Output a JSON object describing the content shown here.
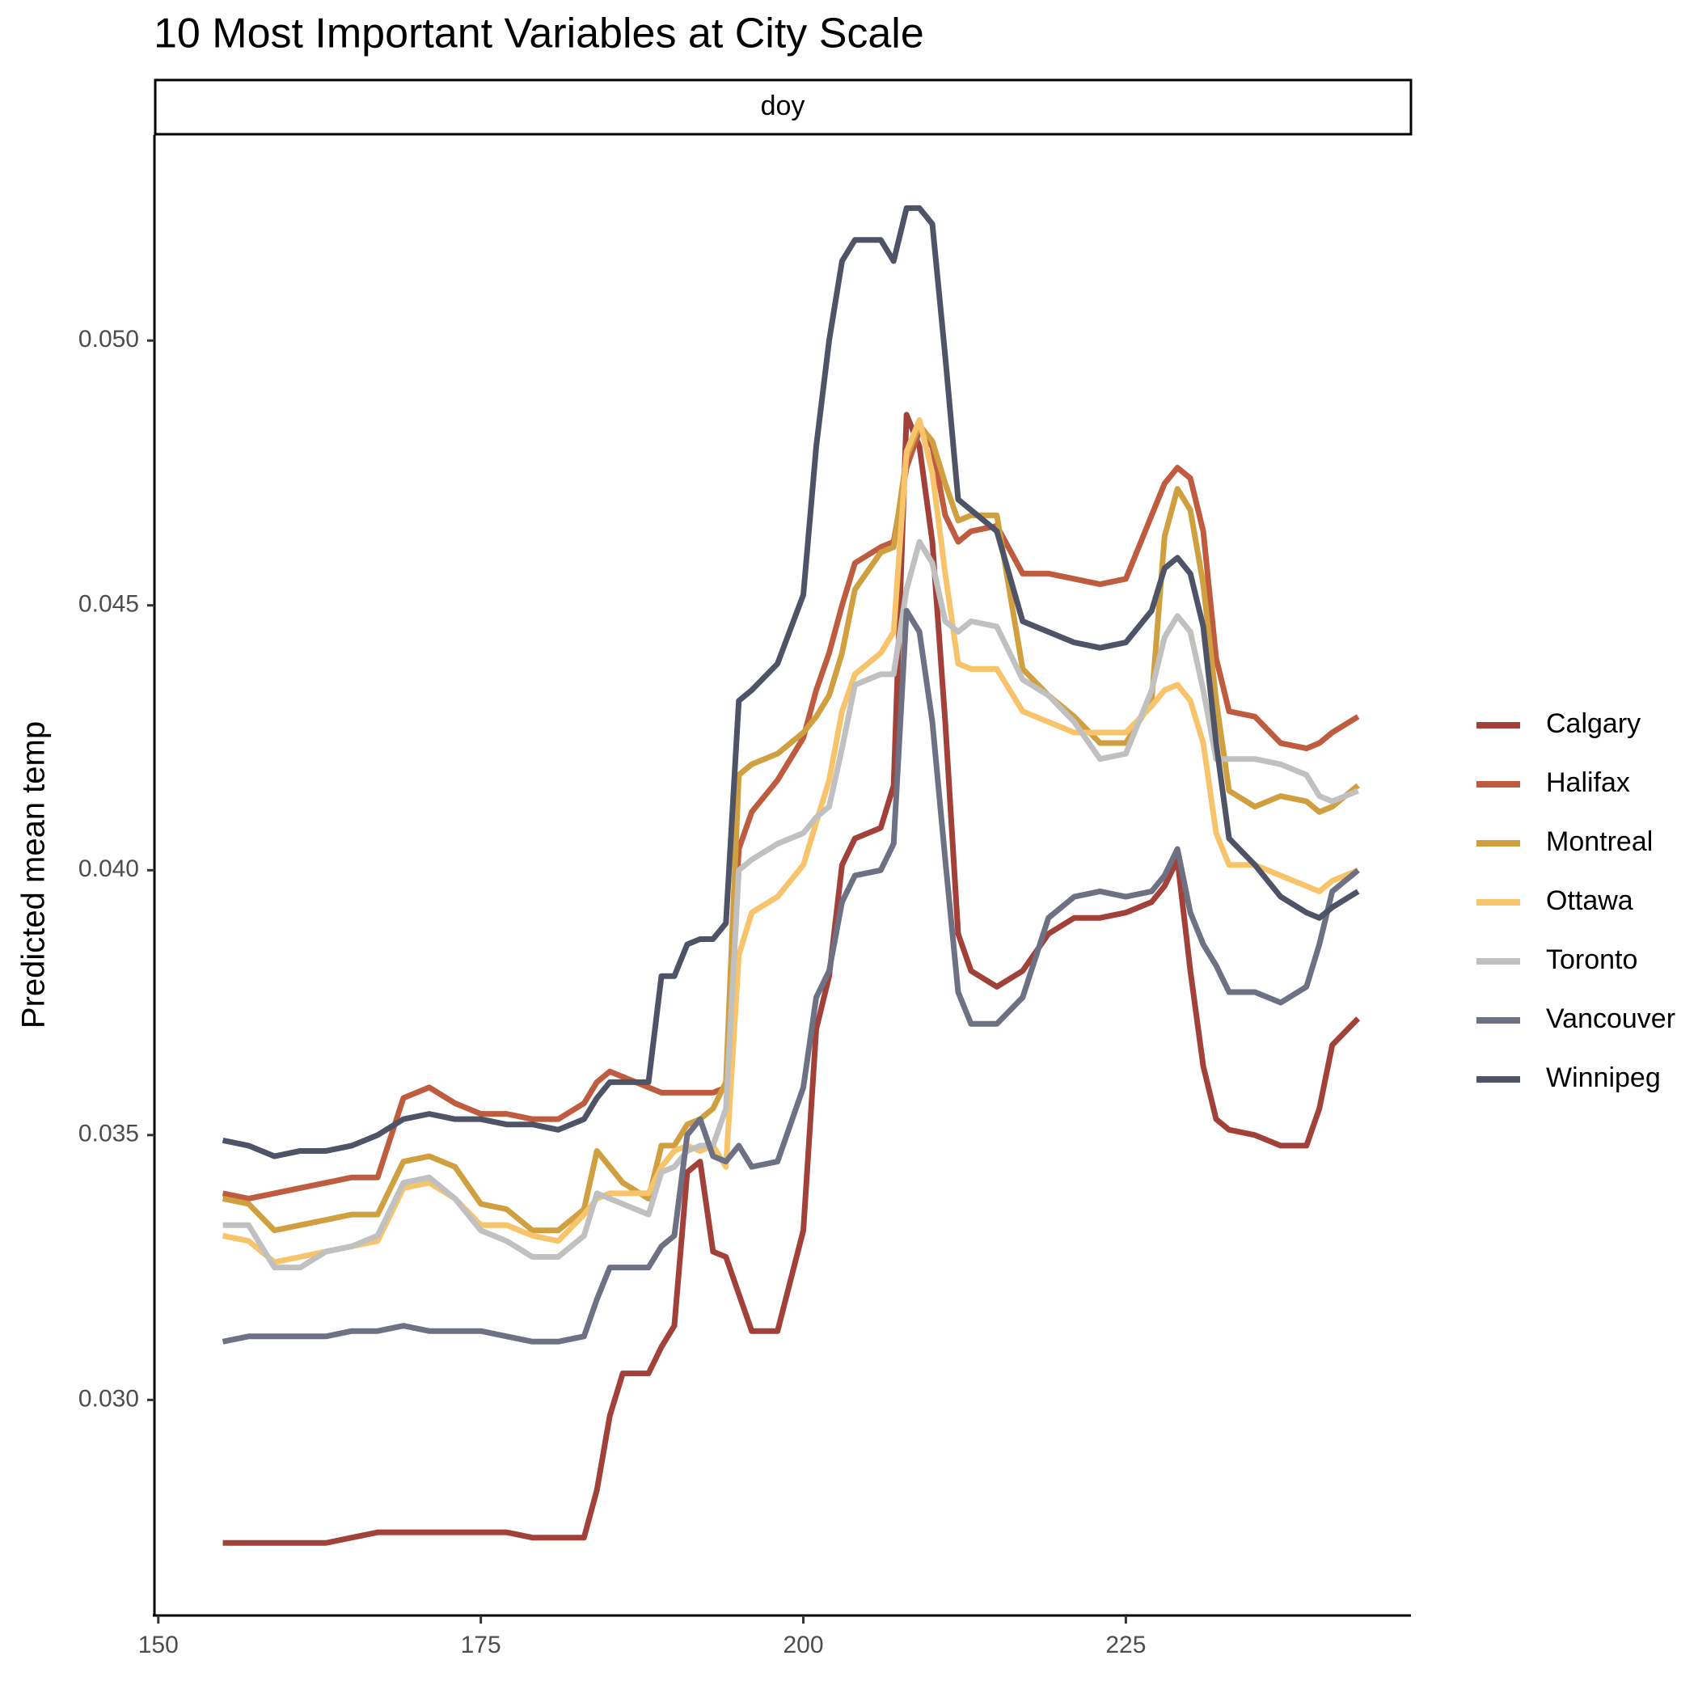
{
  "chart_data": {
    "type": "line",
    "title": "10 Most Important Variables at City Scale",
    "facet": "doy",
    "y_label": "Predicted mean temp",
    "xlim": [
      149.7,
      247.1
    ],
    "ylim": [
      0.02593,
      0.05388
    ],
    "xticks": [
      150,
      175,
      200,
      225
    ],
    "yticks": [
      {
        "value": 0.03,
        "label": "0.030"
      },
      {
        "value": 0.035,
        "label": "0.035"
      },
      {
        "value": 0.04,
        "label": "0.040"
      },
      {
        "value": 0.045,
        "label": "0.045"
      },
      {
        "value": 0.05,
        "label": "0.050"
      }
    ],
    "grid": false,
    "legend": "right",
    "x": [
      155,
      157,
      159,
      161,
      163,
      165,
      167,
      169,
      171,
      173,
      175,
      177,
      179,
      181,
      183,
      184,
      185,
      186,
      188,
      189,
      190,
      191,
      192,
      193,
      194,
      195,
      196,
      198,
      200,
      201,
      202,
      203,
      204,
      206,
      207,
      208,
      209,
      210,
      211,
      212,
      213,
      215,
      217,
      219,
      221,
      223,
      225,
      227,
      228,
      229,
      230,
      231,
      232,
      233,
      235,
      237,
      239,
      240,
      241,
      243
    ],
    "series": [
      {
        "name": "Calgary",
        "color": "#a2413a",
        "values": [
          0.0273,
          0.0273,
          0.0273,
          0.0273,
          0.0273,
          0.0274,
          0.0275,
          0.0275,
          0.0275,
          0.0275,
          0.0275,
          0.0275,
          0.0274,
          0.0274,
          0.0274,
          0.0283,
          0.0297,
          0.0305,
          0.0305,
          0.031,
          0.0314,
          0.0343,
          0.0345,
          0.0328,
          0.0327,
          0.032,
          0.0313,
          0.0313,
          0.0332,
          0.037,
          0.038,
          0.0401,
          0.0406,
          0.0408,
          0.0416,
          0.0486,
          0.048,
          0.0462,
          0.0428,
          0.0388,
          0.0381,
          0.0378,
          0.0381,
          0.0388,
          0.0391,
          0.0391,
          0.0392,
          0.0394,
          0.0397,
          0.0402,
          0.0381,
          0.0363,
          0.0353,
          0.0351,
          0.035,
          0.0348,
          0.0348,
          0.0355,
          0.0367,
          0.0372
        ]
      },
      {
        "name": "Halifax",
        "color": "#bf5b3f",
        "values": [
          0.0339,
          0.0338,
          0.0339,
          0.034,
          0.0341,
          0.0342,
          0.0342,
          0.0357,
          0.0359,
          0.0356,
          0.0354,
          0.0354,
          0.0353,
          0.0353,
          0.0356,
          0.036,
          0.0362,
          0.0361,
          0.0359,
          0.0358,
          0.0358,
          0.0358,
          0.0358,
          0.0358,
          0.0359,
          0.0404,
          0.0411,
          0.0417,
          0.0425,
          0.0434,
          0.0441,
          0.045,
          0.0458,
          0.0461,
          0.0462,
          0.0476,
          0.0483,
          0.048,
          0.0467,
          0.0462,
          0.0464,
          0.0465,
          0.0456,
          0.0456,
          0.0455,
          0.0454,
          0.0455,
          0.0467,
          0.0473,
          0.0476,
          0.0474,
          0.0464,
          0.044,
          0.043,
          0.0429,
          0.0424,
          0.0423,
          0.0424,
          0.0426,
          0.0429
        ]
      },
      {
        "name": "Montreal",
        "color": "#d0a040",
        "values": [
          0.0338,
          0.0337,
          0.0332,
          0.0333,
          0.0334,
          0.0335,
          0.0335,
          0.0345,
          0.0346,
          0.0344,
          0.0337,
          0.0336,
          0.0332,
          0.0332,
          0.0336,
          0.0347,
          0.0344,
          0.0341,
          0.0338,
          0.0348,
          0.0348,
          0.0352,
          0.0353,
          0.0355,
          0.036,
          0.0418,
          0.042,
          0.0422,
          0.0426,
          0.0429,
          0.0433,
          0.0441,
          0.0453,
          0.046,
          0.0461,
          0.0478,
          0.0484,
          0.0481,
          0.0473,
          0.0466,
          0.0467,
          0.0467,
          0.0438,
          0.0433,
          0.0429,
          0.0424,
          0.0424,
          0.0432,
          0.0463,
          0.0472,
          0.0468,
          0.0454,
          0.0432,
          0.0415,
          0.0412,
          0.0414,
          0.0413,
          0.0411,
          0.0412,
          0.0416
        ]
      },
      {
        "name": "Ottawa",
        "color": "#f7c46c",
        "values": [
          0.0331,
          0.033,
          0.0326,
          0.0327,
          0.0328,
          0.0329,
          0.033,
          0.034,
          0.0341,
          0.0338,
          0.0333,
          0.0333,
          0.0331,
          0.033,
          0.0335,
          0.0338,
          0.0339,
          0.0339,
          0.0339,
          0.0344,
          0.0347,
          0.0348,
          0.0347,
          0.0348,
          0.0344,
          0.0384,
          0.0392,
          0.0395,
          0.0401,
          0.0409,
          0.0417,
          0.043,
          0.0437,
          0.0441,
          0.0445,
          0.0479,
          0.0485,
          0.0475,
          0.0456,
          0.0439,
          0.0438,
          0.0438,
          0.043,
          0.0428,
          0.0426,
          0.0426,
          0.0426,
          0.0431,
          0.0434,
          0.0435,
          0.0432,
          0.0424,
          0.0407,
          0.0401,
          0.0401,
          0.0399,
          0.0397,
          0.0396,
          0.0398,
          0.04
        ]
      },
      {
        "name": "Toronto",
        "color": "#c0c0c0",
        "values": [
          0.0333,
          0.0333,
          0.0325,
          0.0325,
          0.0328,
          0.0329,
          0.0331,
          0.0341,
          0.0342,
          0.0338,
          0.0332,
          0.033,
          0.0327,
          0.0327,
          0.0331,
          0.0339,
          0.0338,
          0.0337,
          0.0335,
          0.0343,
          0.0344,
          0.0347,
          0.0348,
          0.0348,
          0.0355,
          0.04,
          0.0402,
          0.0405,
          0.0407,
          0.041,
          0.0412,
          0.0423,
          0.0435,
          0.0437,
          0.0437,
          0.0453,
          0.0462,
          0.0458,
          0.0447,
          0.0445,
          0.0447,
          0.0446,
          0.0436,
          0.0433,
          0.0428,
          0.0421,
          0.0422,
          0.0434,
          0.0444,
          0.0448,
          0.0445,
          0.0434,
          0.0421,
          0.0421,
          0.0421,
          0.042,
          0.0418,
          0.0414,
          0.0413,
          0.0415
        ]
      },
      {
        "name": "Vancouver",
        "color": "#6e7083",
        "values": [
          0.0311,
          0.0312,
          0.0312,
          0.0312,
          0.0312,
          0.0313,
          0.0313,
          0.0314,
          0.0313,
          0.0313,
          0.0313,
          0.0312,
          0.0311,
          0.0311,
          0.0312,
          0.0319,
          0.0325,
          0.0325,
          0.0325,
          0.0329,
          0.0331,
          0.035,
          0.0353,
          0.0346,
          0.0345,
          0.0348,
          0.0344,
          0.0345,
          0.0359,
          0.0376,
          0.0381,
          0.0394,
          0.0399,
          0.04,
          0.0405,
          0.0449,
          0.0445,
          0.0428,
          0.0402,
          0.0377,
          0.0371,
          0.0371,
          0.0376,
          0.0391,
          0.0395,
          0.0396,
          0.0395,
          0.0396,
          0.0399,
          0.0404,
          0.0392,
          0.0386,
          0.0382,
          0.0377,
          0.0377,
          0.0375,
          0.0378,
          0.0386,
          0.0396,
          0.04
        ]
      },
      {
        "name": "Winnipeg",
        "color": "#4e5366",
        "values": [
          0.0349,
          0.0348,
          0.0346,
          0.0347,
          0.0347,
          0.0348,
          0.035,
          0.0353,
          0.0354,
          0.0353,
          0.0353,
          0.0352,
          0.0352,
          0.0351,
          0.0353,
          0.0357,
          0.036,
          0.036,
          0.036,
          0.038,
          0.038,
          0.0386,
          0.0387,
          0.0387,
          0.039,
          0.0432,
          0.0434,
          0.0439,
          0.0452,
          0.048,
          0.05,
          0.0515,
          0.0519,
          0.0519,
          0.0515,
          0.0525,
          0.0525,
          0.0522,
          0.0497,
          0.047,
          0.0468,
          0.0464,
          0.0447,
          0.0445,
          0.0443,
          0.0442,
          0.0443,
          0.0449,
          0.0457,
          0.0459,
          0.0456,
          0.0446,
          0.0424,
          0.0406,
          0.0401,
          0.0395,
          0.0392,
          0.0391,
          0.0393,
          0.0396
        ]
      }
    ]
  }
}
